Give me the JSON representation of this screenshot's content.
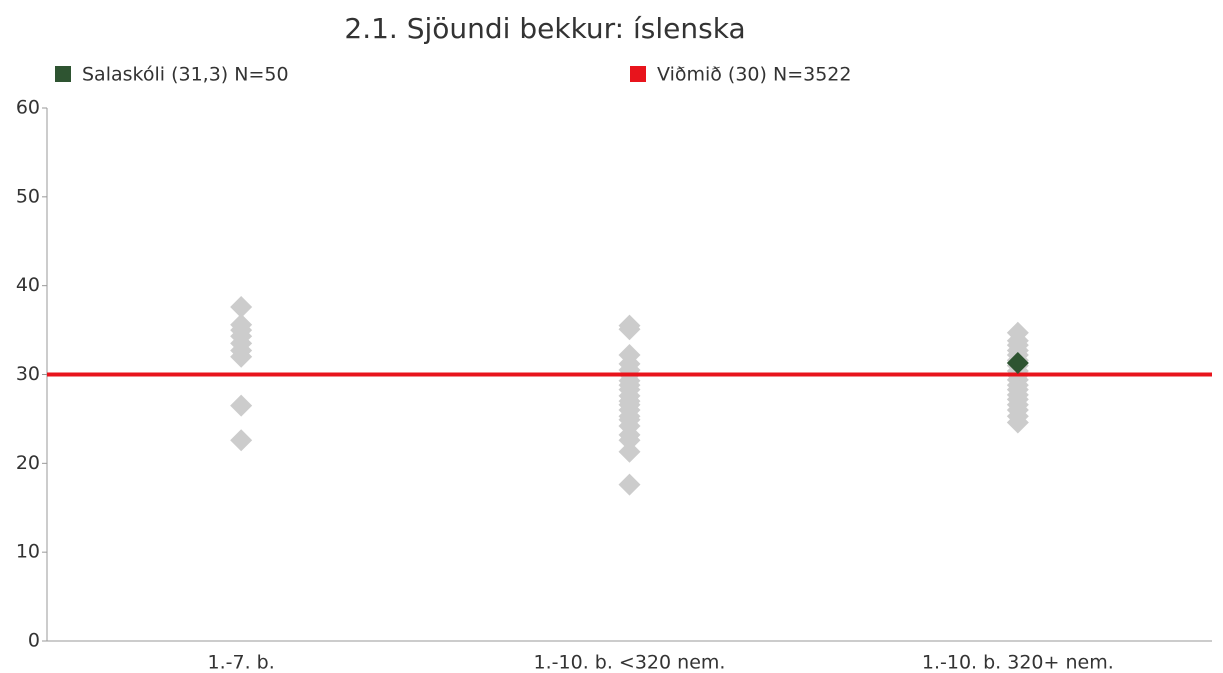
{
  "chart_data": {
    "type": "strip",
    "title": "2.1. Sjöundi bekkur: íslenska",
    "categories": [
      "1.-7. b.",
      "1.-10. b. <320 nem.",
      "1.-10. b. 320+ nem."
    ],
    "points": [
      [
        37.6,
        35.6,
        35,
        34.3,
        33.5,
        32.7,
        32,
        26.5,
        22.6
      ],
      [
        35.5,
        35.1,
        32.2,
        31.2,
        30.5,
        30,
        29.3,
        28.8,
        28.3,
        27.6,
        27,
        26.6,
        26,
        25.3,
        24.9,
        24.2,
        23.2,
        22.6,
        21.3,
        17.6
      ],
      [
        34.7,
        33.8,
        33.3,
        32.7,
        32.2,
        31.6,
        31,
        30.4,
        29.9,
        29.4,
        28.8,
        28.3,
        27.7,
        27.2,
        26.6,
        26,
        25.3,
        24.6
      ]
    ],
    "point_color": "#cccccc",
    "highlight": {
      "name": "Salaskóli (31,3) N=50",
      "color": "#2e5431",
      "values": [
        null,
        null,
        31.3
      ]
    },
    "reference": {
      "name": "Viðmið (30) N=3522",
      "color": "#e8141c",
      "value": 30
    },
    "ylim": [
      0,
      60
    ],
    "yticks": [
      0,
      10,
      20,
      30,
      40,
      50,
      60
    ]
  }
}
